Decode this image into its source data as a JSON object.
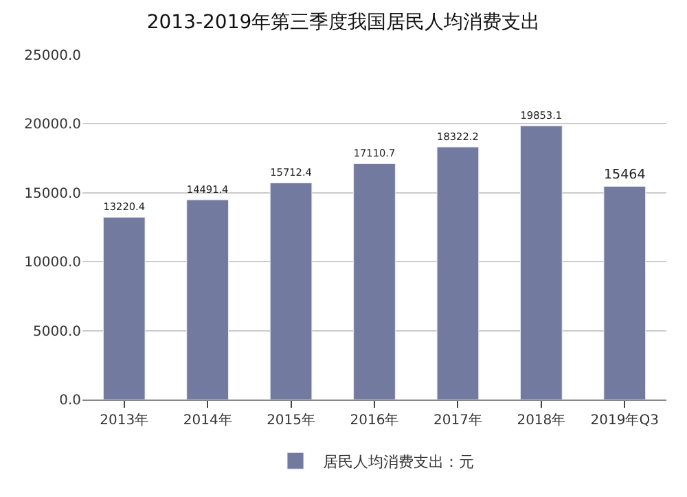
{
  "chart_data": {
    "type": "bar",
    "title": "2013-2019年第三季度我国居民人均消费支出",
    "categories": [
      "2013年",
      "2014年",
      "2015年",
      "2016年",
      "2017年",
      "2018年",
      "2019年Q3"
    ],
    "series": [
      {
        "name": "居民人均消费支出：元",
        "color": "#737aa0",
        "values": [
          13220.4,
          14491.4,
          15712.4,
          17110.7,
          18322.2,
          19853.1,
          15464
        ]
      }
    ],
    "value_labels": [
      "13220.4",
      "14491.4",
      "15712.4",
      "17110.7",
      "18322.2",
      "19853.1",
      "15464"
    ],
    "ylim": [
      0,
      25000
    ],
    "yticks": [
      {
        "value": 0,
        "label": "0.0"
      },
      {
        "value": 5000,
        "label": "5000.0"
      },
      {
        "value": 10000,
        "label": "10000.0"
      },
      {
        "value": 15000,
        "label": "15000.0"
      },
      {
        "value": 20000,
        "label": "20000.0"
      },
      {
        "value": 25000,
        "label": "25000.0"
      }
    ],
    "grid": "y",
    "legend": "bottom"
  }
}
